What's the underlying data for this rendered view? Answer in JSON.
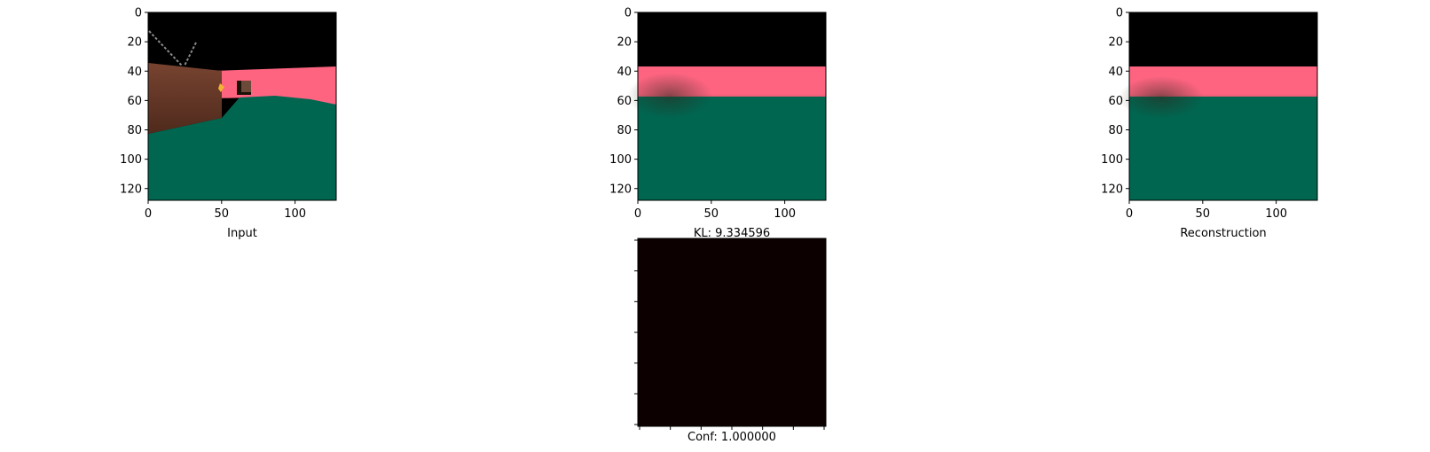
{
  "chart_data": [
    {
      "type": "image",
      "name": "input-panel",
      "xlabel": "Input",
      "xticks": [
        0,
        50,
        100
      ],
      "yticks": [
        0,
        20,
        40,
        60,
        80,
        100,
        120
      ],
      "xlim": [
        0,
        128
      ],
      "ylim": [
        128,
        0
      ],
      "scene": {
        "sky_color": "#000000",
        "wall_color": "#fe6480",
        "floor_color": "#006650",
        "box_color": "#6b3a24"
      }
    },
    {
      "type": "image",
      "name": "kl-panel",
      "xlabel": "KL: 9.334596",
      "xticks": [
        0,
        50,
        100
      ],
      "yticks": [
        0,
        20,
        40,
        60,
        80,
        100,
        120
      ],
      "xlim": [
        0,
        128
      ],
      "ylim": [
        128,
        0
      ],
      "scene": {
        "sky_color": "#000000",
        "wall_color": "#fe6480",
        "floor_color": "#006650"
      }
    },
    {
      "type": "image",
      "name": "reconstruction-panel",
      "xlabel": "Reconstruction",
      "xticks": [
        0,
        50,
        100
      ],
      "yticks": [
        0,
        20,
        40,
        60,
        80,
        100,
        120
      ],
      "xlim": [
        0,
        128
      ],
      "ylim": [
        128,
        0
      ],
      "scene": {
        "sky_color": "#000000",
        "wall_color": "#fe6480",
        "floor_color": "#006650"
      }
    },
    {
      "type": "heatmap",
      "name": "confidence-panel",
      "xlabel": "Conf: 1.000000",
      "fill_color": "#0d0000",
      "tick_count": 7
    }
  ]
}
